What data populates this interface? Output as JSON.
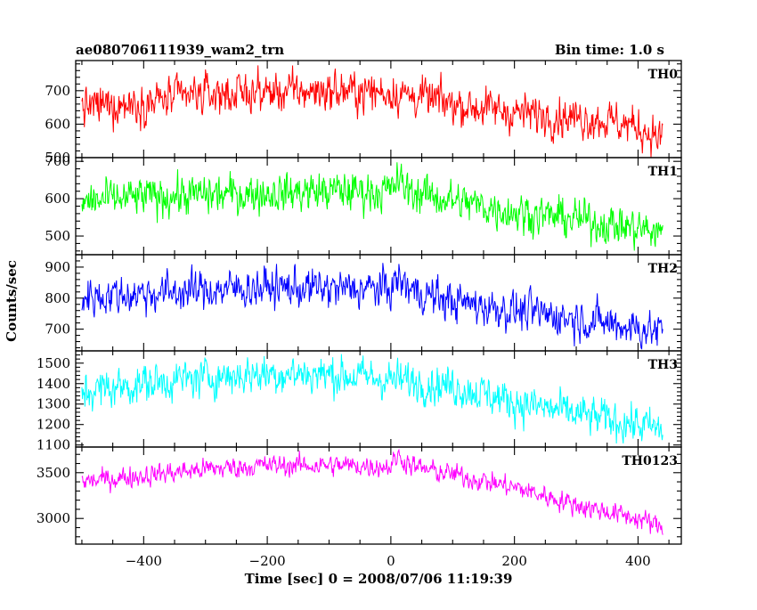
{
  "header": {
    "left": "ae080706111939_wam2_trn",
    "right": "Bin time: 1.0 s"
  },
  "axes": {
    "xlabel": "Time [sec] 0 = 2008/07/06 11:19:39",
    "ylabel": "Counts/sec",
    "xlim": [
      -510,
      470
    ],
    "xticks": [
      -400,
      -200,
      0,
      200,
      400
    ],
    "xtick_labels": [
      "−400",
      "−200",
      "0",
      "200",
      "400"
    ]
  },
  "chart_data": {
    "type": "line",
    "title": "ae080706111939_wam2_trn",
    "subtitle": "Bin time: 1.0 s",
    "xlabel": "Time [sec] 0 = 2008/07/06 11:19:39",
    "ylabel": "Counts/sec",
    "x_range": [
      -500,
      440
    ],
    "bin_seconds": 1.0,
    "panels": [
      {
        "name": "TH0",
        "color": "#ff0000",
        "ylim": [
          500,
          790
        ],
        "yticks": [
          500,
          600,
          700
        ],
        "trend": [
          [
            -500,
            650
          ],
          [
            -400,
            665
          ],
          [
            -300,
            690
          ],
          [
            -200,
            695
          ],
          [
            -100,
            700
          ],
          [
            0,
            695
          ],
          [
            50,
            680
          ],
          [
            100,
            660
          ],
          [
            200,
            635
          ],
          [
            300,
            620
          ],
          [
            350,
            612
          ],
          [
            400,
            590
          ],
          [
            440,
            555
          ]
        ],
        "noise": 28
      },
      {
        "name": "TH1",
        "color": "#00ff00",
        "ylim": [
          450,
          710
        ],
        "yticks": [
          500,
          600,
          700
        ],
        "trend": [
          [
            -500,
            590
          ],
          [
            -400,
            605
          ],
          [
            -300,
            610
          ],
          [
            -200,
            615
          ],
          [
            -100,
            620
          ],
          [
            0,
            620
          ],
          [
            10,
            650
          ],
          [
            30,
            620
          ],
          [
            100,
            595
          ],
          [
            200,
            565
          ],
          [
            300,
            545
          ],
          [
            400,
            520
          ],
          [
            440,
            505
          ]
        ],
        "noise": 25
      },
      {
        "name": "TH2",
        "color": "#0000ff",
        "ylim": [
          630,
          940
        ],
        "yticks": [
          700,
          800,
          900
        ],
        "trend": [
          [
            -500,
            805
          ],
          [
            -400,
            815
          ],
          [
            -300,
            825
          ],
          [
            -200,
            835
          ],
          [
            -100,
            830
          ],
          [
            0,
            830
          ],
          [
            10,
            860
          ],
          [
            40,
            820
          ],
          [
            100,
            790
          ],
          [
            200,
            760
          ],
          [
            300,
            735
          ],
          [
            400,
            705
          ],
          [
            440,
            690
          ]
        ],
        "noise": 30
      },
      {
        "name": "TH3",
        "color": "#00ffff",
        "ylim": [
          1090,
          1560
        ],
        "yticks": [
          1100,
          1200,
          1300,
          1400,
          1500
        ],
        "trend": [
          [
            -500,
            1360
          ],
          [
            -400,
            1400
          ],
          [
            -300,
            1430
          ],
          [
            -200,
            1450
          ],
          [
            -100,
            1445
          ],
          [
            0,
            1420
          ],
          [
            100,
            1390
          ],
          [
            200,
            1310
          ],
          [
            300,
            1250
          ],
          [
            400,
            1200
          ],
          [
            440,
            1170
          ]
        ],
        "noise": 45
      },
      {
        "name": "TH0123",
        "color": "#ff00ff",
        "ylim": [
          2720,
          3780
        ],
        "yticks": [
          3000,
          3500
        ],
        "trend": [
          [
            -500,
            3400
          ],
          [
            -400,
            3470
          ],
          [
            -300,
            3540
          ],
          [
            -200,
            3580
          ],
          [
            -100,
            3580
          ],
          [
            0,
            3570
          ],
          [
            10,
            3680
          ],
          [
            40,
            3560
          ],
          [
            100,
            3480
          ],
          [
            200,
            3340
          ],
          [
            300,
            3150
          ],
          [
            400,
            3000
          ],
          [
            440,
            2900
          ]
        ],
        "noise": 55
      }
    ]
  }
}
